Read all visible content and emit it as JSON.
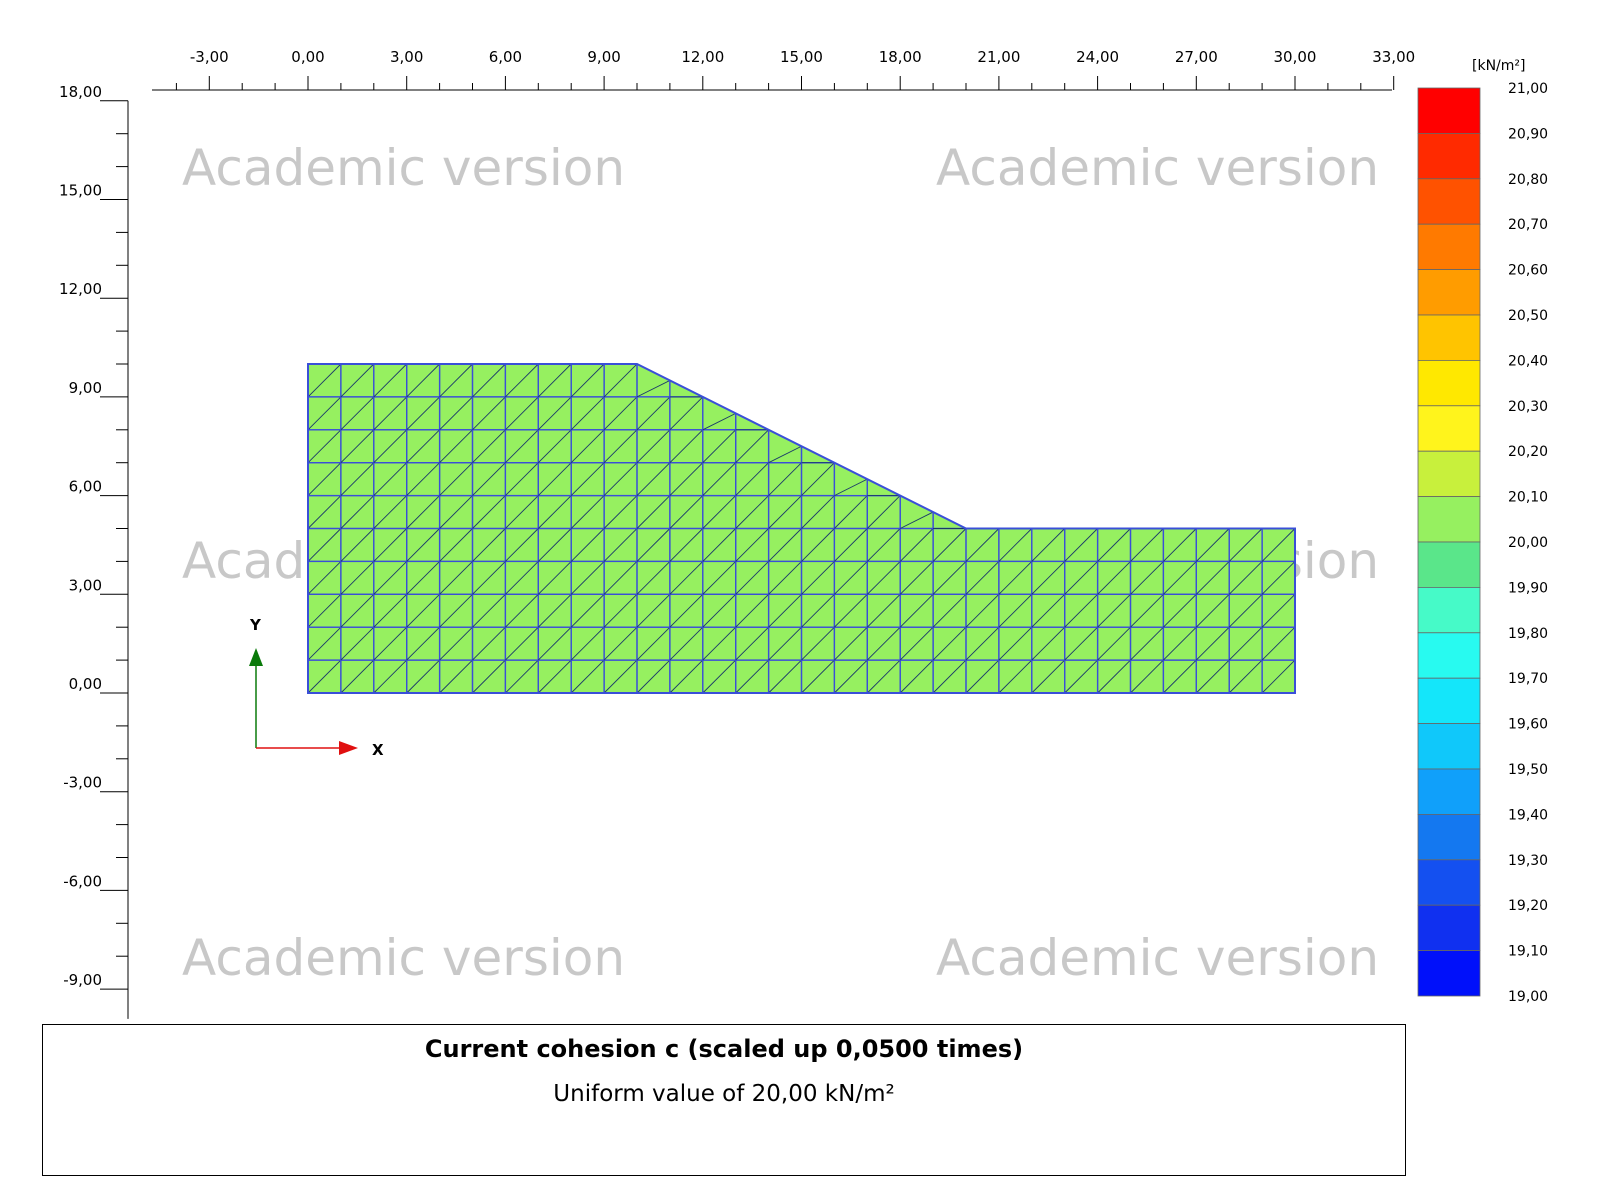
{
  "x_axis": {
    "min": -4.8,
    "max": 33.0,
    "labels": [
      "-3,00",
      "0,00",
      "3,00",
      "6,00",
      "9,00",
      "12,00",
      "15,00",
      "18,00",
      "21,00",
      "24,00",
      "27,00",
      "30,00",
      "33,00"
    ],
    "label_values": [
      -3,
      0,
      3,
      6,
      9,
      12,
      15,
      18,
      21,
      24,
      27,
      30,
      33
    ]
  },
  "y_axis": {
    "min": -9.6,
    "max": 18.0,
    "labels": [
      "18,00",
      "15,00",
      "12,00",
      "9,00",
      "6,00",
      "3,00",
      "0,00",
      "-3,00",
      "-6,00",
      "-9,00"
    ],
    "label_values": [
      18,
      15,
      12,
      9,
      6,
      3,
      0,
      -3,
      -6,
      -9
    ]
  },
  "watermark": "Academic version",
  "legend": {
    "unit": "[kN/m²]",
    "levels": [
      "21,00",
      "20,90",
      "20,80",
      "20,70",
      "20,60",
      "20,50",
      "20,40",
      "20,30",
      "20,20",
      "20,10",
      "20,00",
      "19,90",
      "19,80",
      "19,70",
      "19,60",
      "19,50",
      "19,40",
      "19,30",
      "19,20",
      "19,10",
      "19,00"
    ],
    "colors": [
      "#ff0000",
      "#ff2a00",
      "#ff5200",
      "#ff7a00",
      "#ff9c00",
      "#ffc400",
      "#ffe800",
      "#fff41c",
      "#c8f03c",
      "#96f060",
      "#5ae68a",
      "#46fac8",
      "#28faf0",
      "#14e6fa",
      "#10c8fa",
      "#10a0fa",
      "#1478f0",
      "#1450f0",
      "#1030f0",
      "#0010fa"
    ]
  },
  "axes_indicator": {
    "x": "X",
    "y": "Y"
  },
  "mesh": {
    "fill_color": "#96f060",
    "edge_color": "#3a4fd8",
    "polygon": [
      [
        0,
        0
      ],
      [
        30,
        0
      ],
      [
        30,
        5
      ],
      [
        20,
        5
      ],
      [
        10,
        10
      ],
      [
        0,
        10
      ]
    ],
    "cell_size": 1
  },
  "caption": {
    "title": "Current cohesion c (scaled up 0,0500 times)",
    "subtitle": "Uniform value of 20,00 kN/m²"
  }
}
